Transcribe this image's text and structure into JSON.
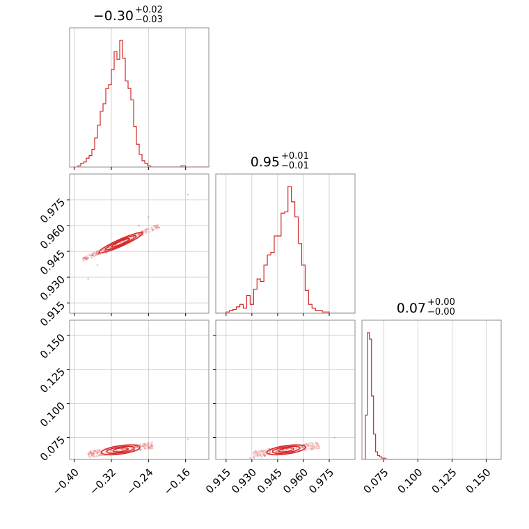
{
  "colors": {
    "main": "#d62728",
    "grid": "#c8c8c8",
    "frame": "#8c8c8c"
  },
  "chart_data": {
    "type": "corner",
    "titles": [
      {
        "main": "−0.30",
        "sup": "+0.02",
        "sub": "−0.03"
      },
      {
        "main": "0.95",
        "sup": "+0.01",
        "sub": "−0.01"
      },
      {
        "main": "0.07",
        "sup": "+0.00",
        "sub": "−0.00"
      }
    ],
    "params": [
      {
        "range": [
          -0.41,
          -0.11
        ],
        "ticks": [
          -0.4,
          -0.32,
          -0.24,
          -0.16
        ],
        "tick_labels": [
          "−0.40",
          "−0.32",
          "−0.24",
          "−0.16"
        ]
      },
      {
        "range": [
          0.909,
          0.99
        ],
        "ticks": [
          0.915,
          0.93,
          0.945,
          0.96,
          0.975
        ],
        "tick_labels": [
          "0.915",
          "0.930",
          "0.945",
          "0.960",
          "0.975"
        ]
      },
      {
        "range": [
          0.059,
          0.161
        ],
        "ticks": [
          0.075,
          0.1,
          0.125,
          0.15
        ],
        "tick_labels": [
          "0.075",
          "0.100",
          "0.125",
          "0.150"
        ]
      }
    ],
    "histograms": [
      {
        "x": [
          -0.4,
          -0.392,
          -0.386,
          -0.38,
          -0.374,
          -0.368,
          -0.362,
          -0.356,
          -0.35,
          -0.344,
          -0.338,
          -0.332,
          -0.326,
          -0.32,
          -0.314,
          -0.308,
          -0.302,
          -0.296,
          -0.29,
          -0.284,
          -0.278,
          -0.272,
          -0.266,
          -0.26,
          -0.254,
          -0.248,
          -0.242,
          -0.236,
          -0.17,
          -0.16,
          -0.11
        ],
        "values": [
          0,
          0.01,
          0.03,
          0.04,
          0.07,
          0.09,
          0.14,
          0.23,
          0.33,
          0.44,
          0.5,
          0.62,
          0.65,
          0.77,
          0.91,
          0.85,
          1.0,
          0.86,
          0.68,
          0.62,
          0.53,
          0.32,
          0.18,
          0.1,
          0.05,
          0.03,
          0.01,
          0,
          0.01,
          0,
          0
        ]
      },
      {
        "x": [
          0.909,
          0.915,
          0.917,
          0.919,
          0.921,
          0.923,
          0.925,
          0.927,
          0.929,
          0.931,
          0.933,
          0.935,
          0.937,
          0.939,
          0.941,
          0.943,
          0.945,
          0.947,
          0.949,
          0.951,
          0.953,
          0.955,
          0.957,
          0.959,
          0.961,
          0.963,
          0.965,
          0.967,
          0.969,
          0.971,
          0.973,
          0.975,
          0.99
        ],
        "values": [
          0,
          0.01,
          0.02,
          0.03,
          0.05,
          0.07,
          0.04,
          0.14,
          0.07,
          0.19,
          0.27,
          0.25,
          0.38,
          0.46,
          0.48,
          0.61,
          0.61,
          0.79,
          0.8,
          1.0,
          0.88,
          0.76,
          0.55,
          0.38,
          0.18,
          0.07,
          0.04,
          0.02,
          0.02,
          0.01,
          0.01,
          0,
          0
        ]
      },
      {
        "x": [
          0.059,
          0.0615,
          0.063,
          0.0645,
          0.066,
          0.0675,
          0.069,
          0.0705,
          0.072,
          0.0735,
          0.075,
          0.0765,
          0.078,
          0.161
        ],
        "values": [
          0,
          0.35,
          1.0,
          0.95,
          0.5,
          0.2,
          0.06,
          0.03,
          0.02,
          0.01,
          0.01,
          0,
          0,
          0
        ]
      }
    ],
    "scatter_points": [
      {
        "x": -0.35,
        "y": 0.937
      },
      {
        "x": -0.32,
        "y": 0.946
      },
      {
        "x": -0.29,
        "y": 0.953
      },
      {
        "x": -0.26,
        "y": 0.96
      },
      {
        "x": -0.3,
        "y": 0.95
      },
      {
        "x": -0.33,
        "y": 0.944
      },
      {
        "x": -0.37,
        "y": 0.929
      },
      {
        "x": -0.24,
        "y": 0.965
      },
      {
        "x": -0.155,
        "y": 0.978
      }
    ],
    "contour_centers": [
      {
        "panel": "p1_vs_p0",
        "x": -0.3,
        "y": 0.95,
        "angle": -24
      },
      {
        "panel": "p2_vs_p0",
        "x": -0.3,
        "y": 0.066,
        "angle": -8
      },
      {
        "panel": "p2_vs_p1",
        "x": 0.95,
        "y": 0.066,
        "angle": -8
      }
    ],
    "grid": true
  }
}
